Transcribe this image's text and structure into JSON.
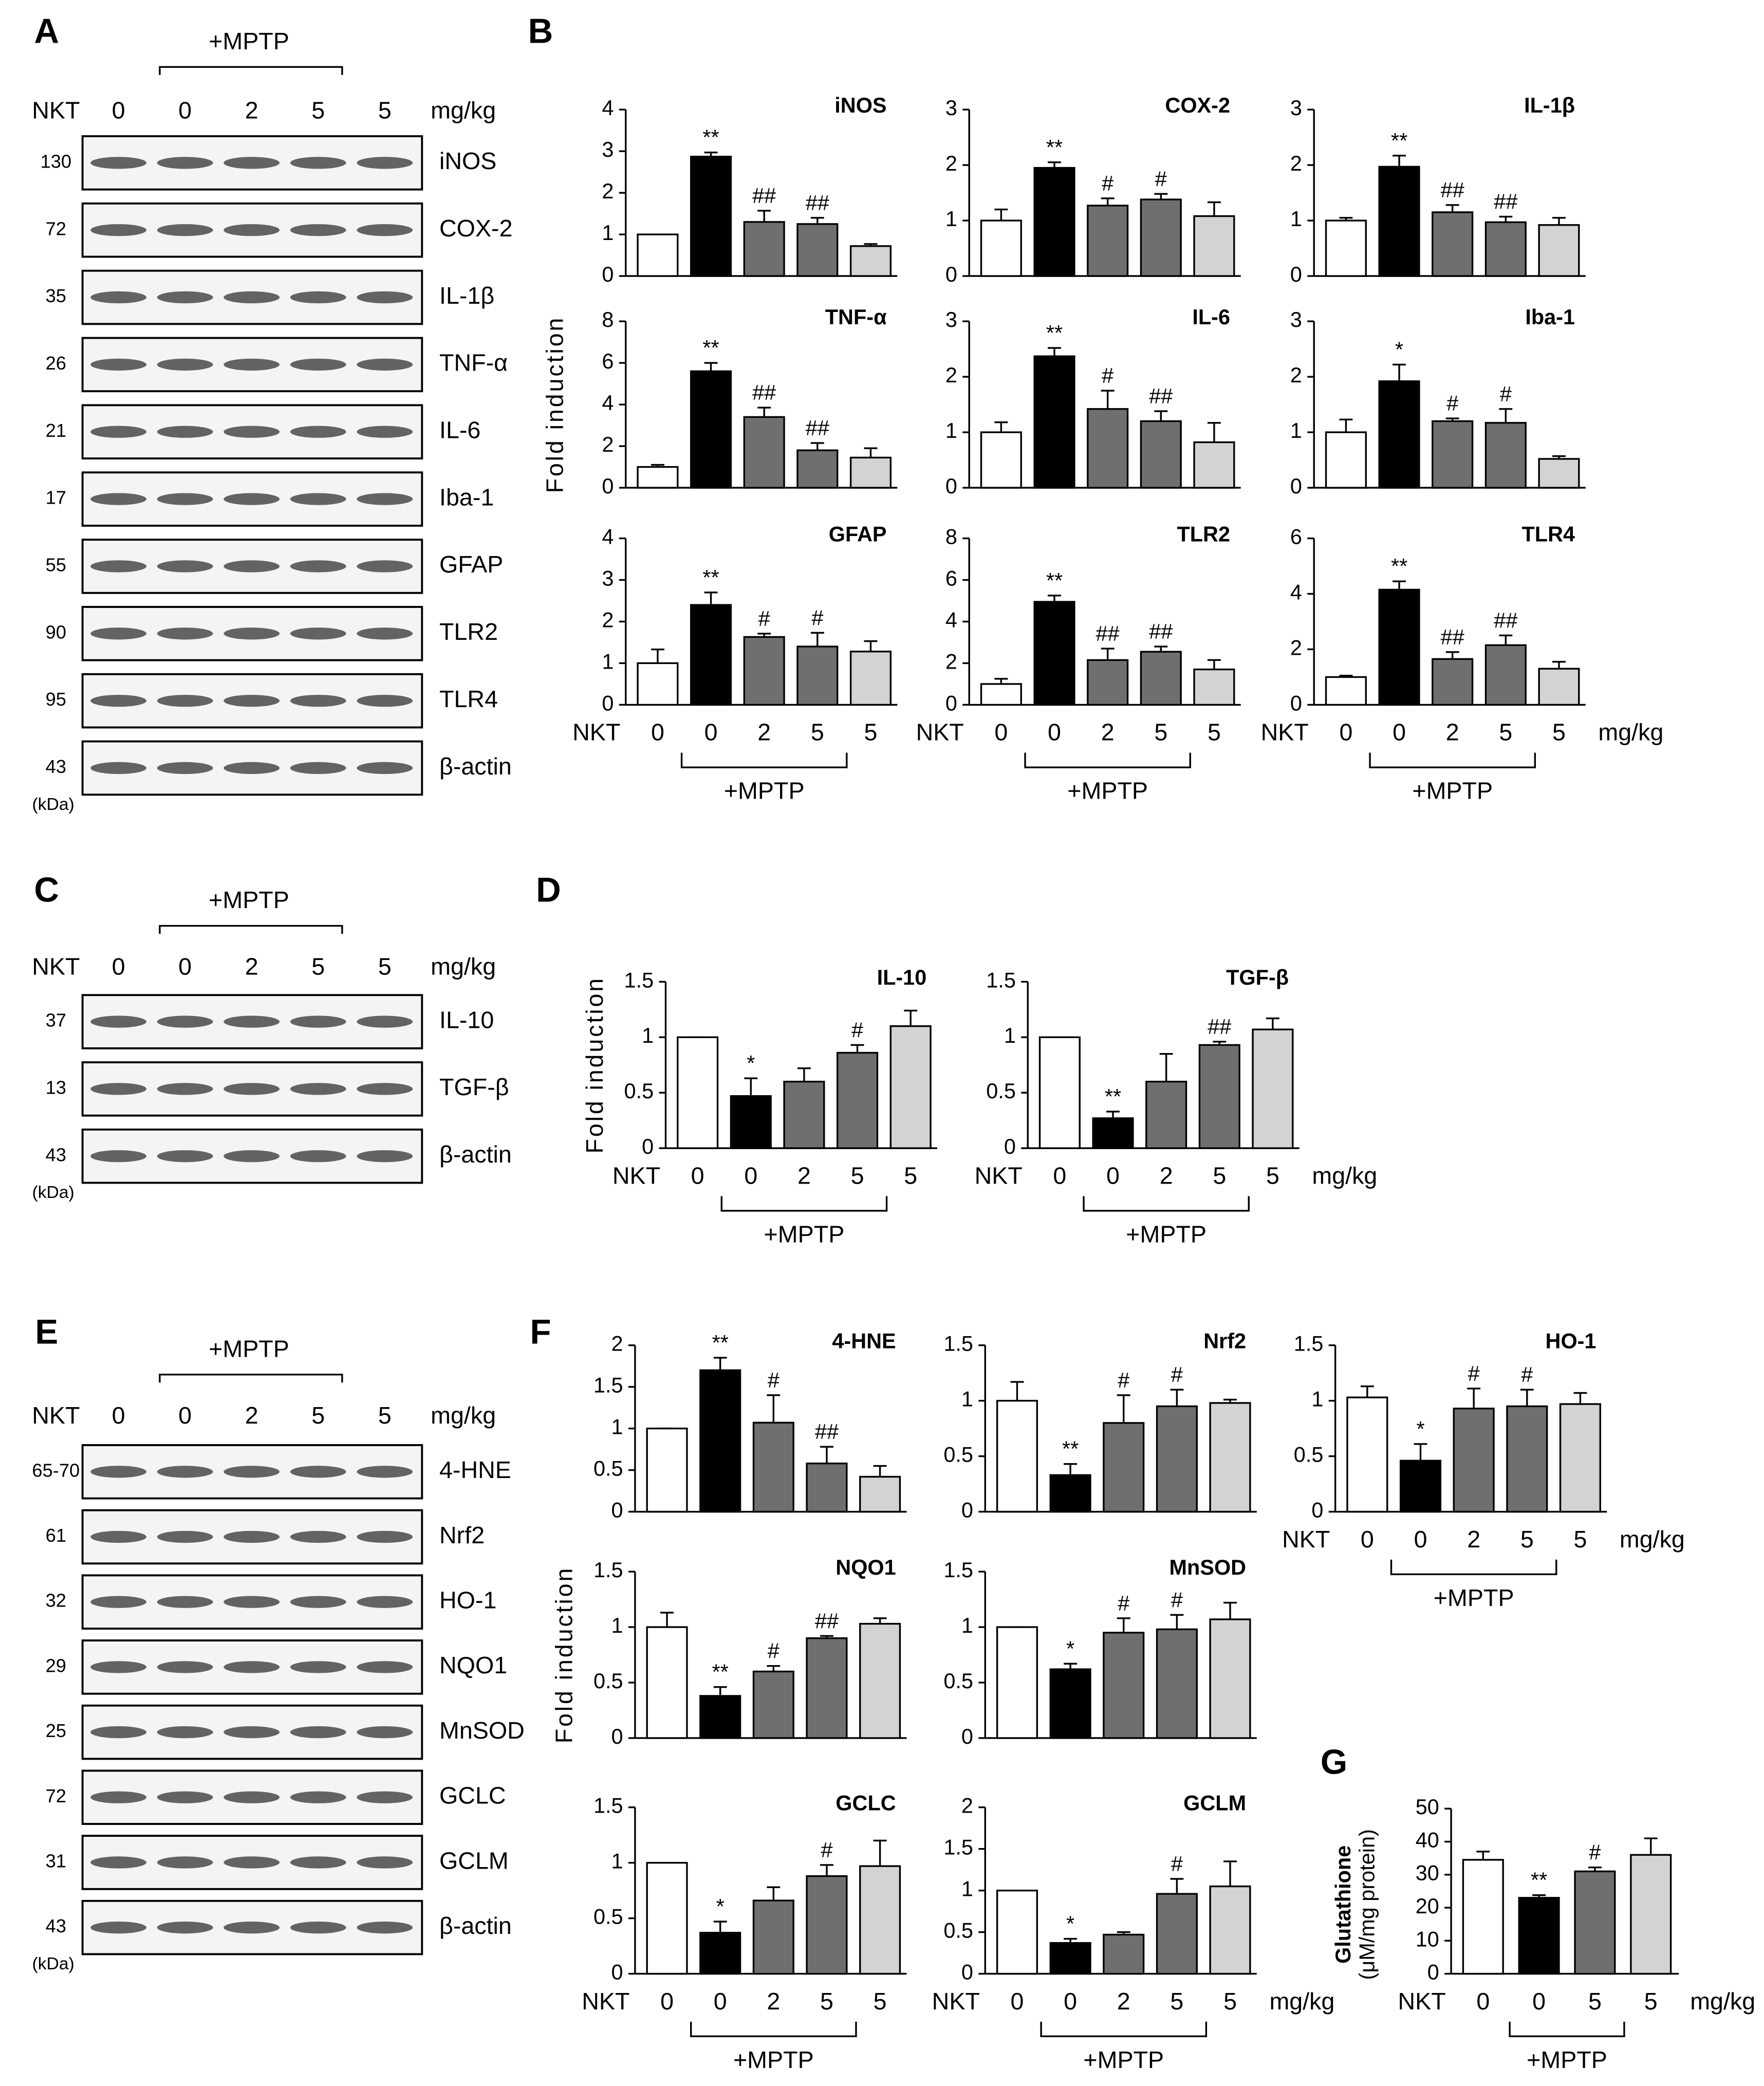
{
  "panel_labels": [
    "A",
    "B",
    "C",
    "D",
    "E",
    "F",
    "G"
  ],
  "blots": [
    {
      "group_label": "+MPTP",
      "dose_label": "NKT",
      "doses": [
        "0",
        "0",
        "2",
        "5",
        "5"
      ],
      "unit": "mg/kg",
      "mw_unit": "(kDa)",
      "rows": [
        {
          "mw": "130",
          "protein": "iNOS"
        },
        {
          "mw": "72",
          "protein": "COX-2"
        },
        {
          "mw": "35",
          "protein": "IL-1β"
        },
        {
          "mw": "26",
          "protein": "TNF-α"
        },
        {
          "mw": "21",
          "protein": "IL-6"
        },
        {
          "mw": "17",
          "protein": "Iba-1"
        },
        {
          "mw": "55",
          "protein": "GFAP"
        },
        {
          "mw": "90",
          "protein": "TLR2"
        },
        {
          "mw": "95",
          "protein": "TLR4"
        },
        {
          "mw": "43",
          "protein": "β-actin"
        }
      ]
    },
    {
      "group_label": "+MPTP",
      "dose_label": "NKT",
      "doses": [
        "0",
        "0",
        "2",
        "5",
        "5"
      ],
      "unit": "mg/kg",
      "mw_unit": "(kDa)",
      "rows": [
        {
          "mw": "37",
          "protein": "IL-10"
        },
        {
          "mw": "13",
          "protein": "TGF-β"
        },
        {
          "mw": "43",
          "protein": "β-actin"
        }
      ]
    },
    {
      "group_label": "+MPTP",
      "dose_label": "NKT",
      "doses": [
        "0",
        "0",
        "2",
        "5",
        "5"
      ],
      "unit": "mg/kg",
      "mw_unit": "(kDa)",
      "rows": [
        {
          "mw": "65-70",
          "protein": "4-HNE"
        },
        {
          "mw": "61",
          "protein": "Nrf2"
        },
        {
          "mw": "32",
          "protein": "HO-1"
        },
        {
          "mw": "29",
          "protein": "NQO1"
        },
        {
          "mw": "25",
          "protein": "MnSOD"
        },
        {
          "mw": "72",
          "protein": "GCLC"
        },
        {
          "mw": "31",
          "protein": "GCLM"
        },
        {
          "mw": "43",
          "protein": "β-actin"
        }
      ]
    }
  ],
  "chart_data": [
    {
      "type": "bar",
      "title": "iNOS",
      "categories": [
        null,
        null,
        null,
        null,
        null
      ],
      "values": [
        1,
        2.87,
        1.3,
        1.25,
        0.72
      ],
      "errors": [
        0,
        0.1,
        0.27,
        0.15,
        0.05
      ],
      "annotations": [
        null,
        "**",
        "##",
        "##",
        null
      ],
      "colors": [
        "#ffffff",
        "#000000",
        "#6f6f6f",
        "#6f6f6f",
        "#d3d3d3"
      ],
      "ylim": [
        0,
        4
      ],
      "yticks": [
        0,
        1,
        2,
        3,
        4
      ]
    },
    {
      "type": "bar",
      "title": "COX-2",
      "categories": [
        null,
        null,
        null,
        null,
        null
      ],
      "values": [
        1,
        1.95,
        1.27,
        1.38,
        1.08
      ],
      "errors": [
        0.2,
        0.1,
        0.13,
        0.1,
        0.25
      ],
      "annotations": [
        null,
        "**",
        "#",
        "#",
        null
      ],
      "colors": [
        "#ffffff",
        "#000000",
        "#6f6f6f",
        "#6f6f6f",
        "#d3d3d3"
      ],
      "ylim": [
        0,
        3
      ],
      "yticks": [
        0,
        1,
        2,
        3
      ]
    },
    {
      "type": "bar",
      "title": "IL-1β",
      "categories": [
        null,
        null,
        null,
        null,
        null
      ],
      "values": [
        1,
        1.97,
        1.15,
        0.97,
        0.92
      ],
      "errors": [
        0.05,
        0.2,
        0.13,
        0.1,
        0.13
      ],
      "annotations": [
        null,
        "**",
        "##",
        "##",
        null
      ],
      "colors": [
        "#ffffff",
        "#000000",
        "#6f6f6f",
        "#6f6f6f",
        "#d3d3d3"
      ],
      "ylim": [
        0,
        3
      ],
      "yticks": [
        0,
        1,
        2,
        3
      ]
    },
    {
      "type": "bar",
      "title": "TNF-α",
      "ylabel": "Fold induction",
      "categories": [
        null,
        null,
        null,
        null,
        null
      ],
      "values": [
        1,
        5.6,
        3.4,
        1.8,
        1.45
      ],
      "errors": [
        0.1,
        0.4,
        0.45,
        0.35,
        0.45
      ],
      "annotations": [
        null,
        "**",
        "##",
        "##",
        null
      ],
      "colors": [
        "#ffffff",
        "#000000",
        "#6f6f6f",
        "#6f6f6f",
        "#d3d3d3"
      ],
      "ylim": [
        0,
        8
      ],
      "yticks": [
        0,
        2,
        4,
        6,
        8
      ]
    },
    {
      "type": "bar",
      "title": "IL-6",
      "categories": [
        null,
        null,
        null,
        null,
        null
      ],
      "values": [
        1,
        2.37,
        1.42,
        1.2,
        0.82
      ],
      "errors": [
        0.18,
        0.15,
        0.33,
        0.18,
        0.35
      ],
      "annotations": [
        null,
        "**",
        "#",
        "##",
        null
      ],
      "colors": [
        "#ffffff",
        "#000000",
        "#6f6f6f",
        "#6f6f6f",
        "#d3d3d3"
      ],
      "ylim": [
        0,
        3
      ],
      "yticks": [
        0,
        1,
        2,
        3
      ]
    },
    {
      "type": "bar",
      "title": "Iba-1",
      "categories": [
        null,
        null,
        null,
        null,
        null
      ],
      "values": [
        1,
        1.92,
        1.2,
        1.17,
        0.52
      ],
      "errors": [
        0.23,
        0.3,
        0.05,
        0.25,
        0.05
      ],
      "annotations": [
        null,
        "*",
        "#",
        "#",
        null
      ],
      "colors": [
        "#ffffff",
        "#000000",
        "#6f6f6f",
        "#6f6f6f",
        "#d3d3d3"
      ],
      "ylim": [
        0,
        3
      ],
      "yticks": [
        0,
        1,
        2,
        3
      ]
    },
    {
      "type": "bar",
      "title": "GFAP",
      "x_label": "NKT",
      "group_label": "+MPTP",
      "categories": [
        "0",
        "0",
        "2",
        "5",
        "5"
      ],
      "values": [
        1,
        2.4,
        1.63,
        1.4,
        1.28
      ],
      "errors": [
        0.33,
        0.3,
        0.08,
        0.33,
        0.25
      ],
      "annotations": [
        null,
        "**",
        "#",
        "#",
        null
      ],
      "colors": [
        "#ffffff",
        "#000000",
        "#6f6f6f",
        "#6f6f6f",
        "#d3d3d3"
      ],
      "ylim": [
        0,
        4
      ],
      "yticks": [
        0,
        1,
        2,
        3,
        4
      ]
    },
    {
      "type": "bar",
      "title": "TLR2",
      "x_label": "NKT",
      "group_label": "+MPTP",
      "categories": [
        "0",
        "0",
        "2",
        "5",
        "5"
      ],
      "values": [
        1,
        4.95,
        2.15,
        2.55,
        1.7
      ],
      "errors": [
        0.25,
        0.3,
        0.55,
        0.25,
        0.45
      ],
      "annotations": [
        null,
        "**",
        "##",
        "##",
        null
      ],
      "colors": [
        "#ffffff",
        "#000000",
        "#6f6f6f",
        "#6f6f6f",
        "#d3d3d3"
      ],
      "ylim": [
        0,
        8
      ],
      "yticks": [
        0,
        2,
        4,
        6,
        8
      ]
    },
    {
      "type": "bar",
      "title": "TLR4",
      "x_label": "NKT",
      "x_unit": "mg/kg",
      "group_label": "+MPTP",
      "categories": [
        "0",
        "0",
        "2",
        "5",
        "5"
      ],
      "values": [
        1,
        4.15,
        1.65,
        2.15,
        1.3
      ],
      "errors": [
        0.05,
        0.3,
        0.25,
        0.35,
        0.25
      ],
      "annotations": [
        null,
        "**",
        "##",
        "##",
        null
      ],
      "colors": [
        "#ffffff",
        "#000000",
        "#6f6f6f",
        "#6f6f6f",
        "#d3d3d3"
      ],
      "ylim": [
        0,
        6
      ],
      "yticks": [
        0,
        2,
        4,
        6
      ]
    },
    {
      "type": "bar",
      "title": "IL-10",
      "ylabel": "Fold induction",
      "x_label": "NKT",
      "group_label": "+MPTP",
      "categories": [
        "0",
        "0",
        "2",
        "5",
        "5"
      ],
      "values": [
        1,
        0.47,
        0.6,
        0.86,
        1.1
      ],
      "errors": [
        0,
        0.16,
        0.12,
        0.07,
        0.14
      ],
      "annotations": [
        null,
        "*",
        null,
        "#",
        null
      ],
      "colors": [
        "#ffffff",
        "#000000",
        "#6f6f6f",
        "#6f6f6f",
        "#d3d3d3"
      ],
      "ylim": [
        0,
        1.5
      ],
      "yticks": [
        0,
        0.5,
        1,
        1.5
      ]
    },
    {
      "type": "bar",
      "title": "TGF-β",
      "x_label": "NKT",
      "x_unit": "mg/kg",
      "group_label": "+MPTP",
      "categories": [
        "0",
        "0",
        "2",
        "5",
        "5"
      ],
      "values": [
        1,
        0.27,
        0.6,
        0.93,
        1.07
      ],
      "errors": [
        0,
        0.06,
        0.25,
        0.03,
        0.1
      ],
      "annotations": [
        null,
        "**",
        null,
        "##",
        null
      ],
      "colors": [
        "#ffffff",
        "#000000",
        "#6f6f6f",
        "#6f6f6f",
        "#d3d3d3"
      ],
      "ylim": [
        0,
        1.5
      ],
      "yticks": [
        0,
        0.5,
        1,
        1.5
      ]
    },
    {
      "type": "bar",
      "title": "4-HNE",
      "categories": [
        null,
        null,
        null,
        null,
        null
      ],
      "values": [
        1,
        1.7,
        1.07,
        0.58,
        0.42
      ],
      "errors": [
        0,
        0.15,
        0.33,
        0.2,
        0.13
      ],
      "annotations": [
        null,
        "**",
        "#",
        "##",
        null
      ],
      "colors": [
        "#ffffff",
        "#000000",
        "#6f6f6f",
        "#6f6f6f",
        "#d3d3d3"
      ],
      "ylim": [
        0,
        2
      ],
      "yticks": [
        0,
        0.5,
        1,
        1.5,
        2
      ]
    },
    {
      "type": "bar",
      "title": "Nrf2",
      "categories": [
        null,
        null,
        null,
        null,
        null
      ],
      "values": [
        1,
        0.33,
        0.8,
        0.95,
        0.98
      ],
      "errors": [
        0.17,
        0.1,
        0.25,
        0.15,
        0.03
      ],
      "annotations": [
        null,
        "**",
        "#",
        "#",
        null
      ],
      "colors": [
        "#ffffff",
        "#000000",
        "#6f6f6f",
        "#6f6f6f",
        "#d3d3d3"
      ],
      "ylim": [
        0,
        1.5
      ],
      "yticks": [
        0,
        0.5,
        1,
        1.5
      ]
    },
    {
      "type": "bar",
      "title": "HO-1",
      "x_label": "NKT",
      "x_unit": "mg/kg",
      "group_label": "+MPTP",
      "categories": [
        "0",
        "0",
        "2",
        "5",
        "5"
      ],
      "values": [
        1.03,
        0.46,
        0.93,
        0.95,
        0.97
      ],
      "errors": [
        0.1,
        0.15,
        0.18,
        0.15,
        0.1
      ],
      "annotations": [
        null,
        "*",
        "#",
        "#",
        null
      ],
      "colors": [
        "#ffffff",
        "#000000",
        "#6f6f6f",
        "#6f6f6f",
        "#d3d3d3"
      ],
      "ylim": [
        0,
        1.5
      ],
      "yticks": [
        0,
        0.5,
        1,
        1.5
      ]
    },
    {
      "type": "bar",
      "title": "NQO1",
      "ylabel": "Fold induction",
      "categories": [
        null,
        null,
        null,
        null,
        null
      ],
      "values": [
        1,
        0.38,
        0.6,
        0.9,
        1.03
      ],
      "errors": [
        0.13,
        0.08,
        0.05,
        0.02,
        0.05
      ],
      "annotations": [
        null,
        "**",
        "#",
        "##",
        null
      ],
      "colors": [
        "#ffffff",
        "#000000",
        "#6f6f6f",
        "#6f6f6f",
        "#d3d3d3"
      ],
      "ylim": [
        0,
        1.5
      ],
      "yticks": [
        0,
        0.5,
        1,
        1.5
      ]
    },
    {
      "type": "bar",
      "title": "MnSOD",
      "categories": [
        null,
        null,
        null,
        null,
        null
      ],
      "values": [
        1,
        0.62,
        0.95,
        0.98,
        1.07
      ],
      "errors": [
        0,
        0.05,
        0.13,
        0.13,
        0.15
      ],
      "annotations": [
        null,
        "*",
        "#",
        "#",
        null
      ],
      "colors": [
        "#ffffff",
        "#000000",
        "#6f6f6f",
        "#6f6f6f",
        "#d3d3d3"
      ],
      "ylim": [
        0,
        1.5
      ],
      "yticks": [
        0,
        0.5,
        1,
        1.5
      ]
    },
    {
      "type": "bar",
      "title": "GCLC",
      "x_label": "NKT",
      "group_label": "+MPTP",
      "categories": [
        "0",
        "0",
        "2",
        "5",
        "5"
      ],
      "values": [
        1,
        0.37,
        0.66,
        0.88,
        0.97
      ],
      "errors": [
        0,
        0.1,
        0.12,
        0.1,
        0.23
      ],
      "annotations": [
        null,
        "*",
        null,
        "#",
        null
      ],
      "colors": [
        "#ffffff",
        "#000000",
        "#6f6f6f",
        "#6f6f6f",
        "#d3d3d3"
      ],
      "ylim": [
        0,
        1.5
      ],
      "yticks": [
        0,
        0.5,
        1,
        1.5
      ]
    },
    {
      "type": "bar",
      "title": "GCLM",
      "x_label": "NKT",
      "x_unit": "mg/kg",
      "group_label": "+MPTP",
      "categories": [
        "0",
        "0",
        "2",
        "5",
        "5"
      ],
      "values": [
        1,
        0.37,
        0.47,
        0.96,
        1.05
      ],
      "errors": [
        0,
        0.05,
        0.03,
        0.18,
        0.3
      ],
      "annotations": [
        null,
        "*",
        null,
        "#",
        null
      ],
      "colors": [
        "#ffffff",
        "#000000",
        "#6f6f6f",
        "#6f6f6f",
        "#d3d3d3"
      ],
      "ylim": [
        0,
        2
      ],
      "yticks": [
        0,
        0.5,
        1,
        1.5,
        2
      ]
    },
    {
      "type": "bar",
      "ylabel": "Glutathione",
      "ylabel2": "(μM/mg protein)",
      "x_label": "NKT",
      "x_unit": "mg/kg",
      "group_label": "+MPTP",
      "categories": [
        "0",
        "0",
        "5",
        "5"
      ],
      "values": [
        34.5,
        23,
        31,
        36
      ],
      "errors": [
        2.5,
        0.8,
        1.2,
        5
      ],
      "annotations": [
        null,
        "**",
        "#",
        null
      ],
      "colors": [
        "#ffffff",
        "#000000",
        "#6f6f6f",
        "#d3d3d3"
      ],
      "ylim": [
        0,
        50
      ],
      "yticks": [
        0,
        10,
        20,
        30,
        40,
        50
      ]
    }
  ]
}
